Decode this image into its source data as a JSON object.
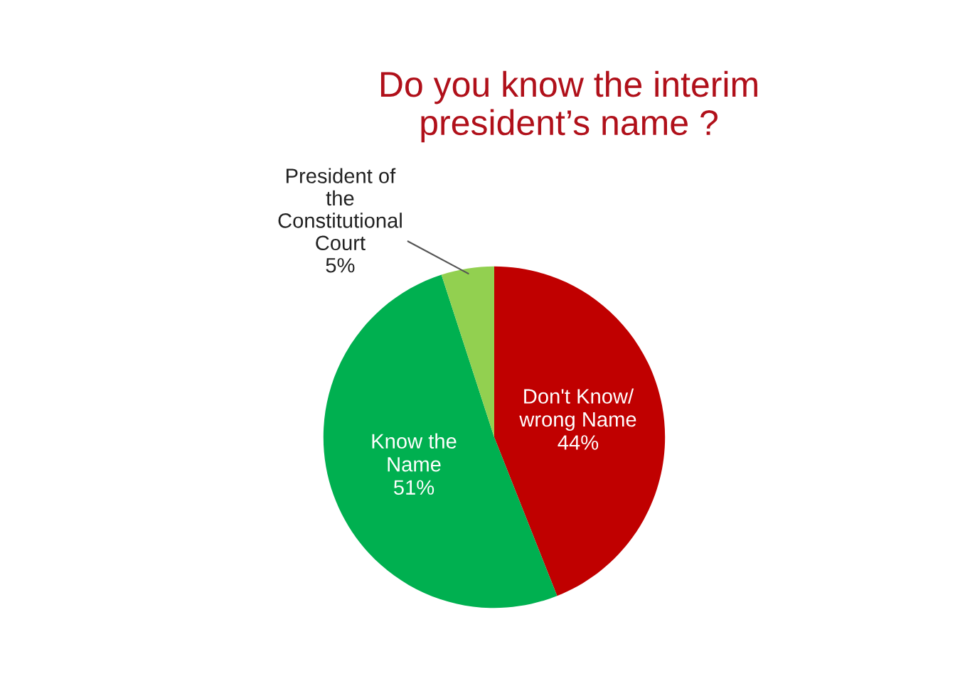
{
  "chart_data": {
    "type": "pie",
    "title": "Do you know the interim\npresident’s name ?",
    "categories": [
      "Don't Know/\nwrong Name",
      "Know the\nName",
      "President of\nthe\nConstitutional\nCourt"
    ],
    "values": [
      44,
      51,
      5
    ],
    "colors": [
      "#c00000",
      "#00b050",
      "#92d050"
    ],
    "value_labels": [
      "44%",
      "51%",
      "5%"
    ]
  }
}
